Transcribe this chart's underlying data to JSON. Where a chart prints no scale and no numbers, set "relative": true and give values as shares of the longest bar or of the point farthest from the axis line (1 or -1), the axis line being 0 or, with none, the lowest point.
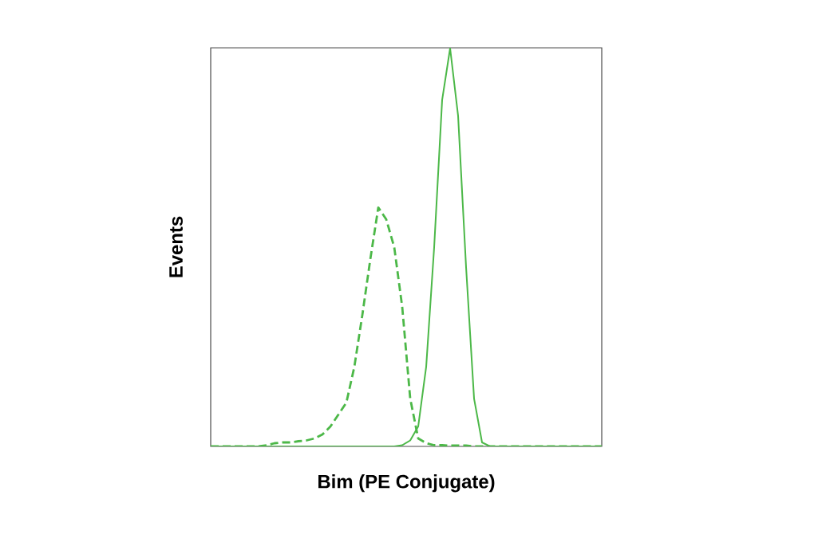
{
  "chart_data": {
    "type": "line",
    "relative": true,
    "xlabel": "Bim (PE Conjugate)",
    "ylabel": "Events",
    "categories": [
      null,
      null,
      null,
      null,
      null,
      null,
      null,
      null,
      null,
      null,
      null,
      null,
      null,
      null,
      null,
      null,
      null,
      null,
      null,
      null,
      null,
      null,
      null,
      null,
      null,
      null,
      null,
      null,
      null,
      null,
      null,
      null,
      null,
      null,
      null,
      null,
      null,
      null,
      null,
      null,
      null,
      null,
      null,
      null,
      null,
      null,
      null,
      null,
      null,
      null
    ],
    "series": [
      {
        "color": "#4cb848",
        "line_style": "dashed",
        "values": [
          0,
          0,
          0,
          0,
          0,
          0,
          0,
          0.003,
          0.008,
          0.01,
          0.01,
          0.013,
          0.015,
          0.02,
          0.03,
          0.05,
          0.08,
          0.11,
          0.2,
          0.33,
          0.47,
          0.6,
          0.57,
          0.5,
          0.35,
          0.12,
          0.02,
          0.008,
          0.003,
          0.003,
          0.002,
          0.002,
          0.002,
          0,
          0,
          0,
          0,
          0,
          0,
          0,
          0,
          0,
          0,
          0,
          0,
          0,
          0,
          0,
          0,
          0
        ]
      },
      {
        "color": "#4cb848",
        "line_style": "solid",
        "values": [
          0,
          0,
          0,
          0,
          0,
          0,
          0,
          0,
          0,
          0,
          0,
          0,
          0,
          0,
          0,
          0,
          0,
          0,
          0,
          0,
          0,
          0,
          0,
          0,
          0.003,
          0.015,
          0.05,
          0.2,
          0.5,
          0.87,
          1.0,
          0.83,
          0.45,
          0.12,
          0.01,
          0,
          0,
          0,
          0,
          0,
          0,
          0,
          0,
          0,
          0,
          0,
          0,
          0,
          0,
          0
        ]
      }
    ]
  }
}
